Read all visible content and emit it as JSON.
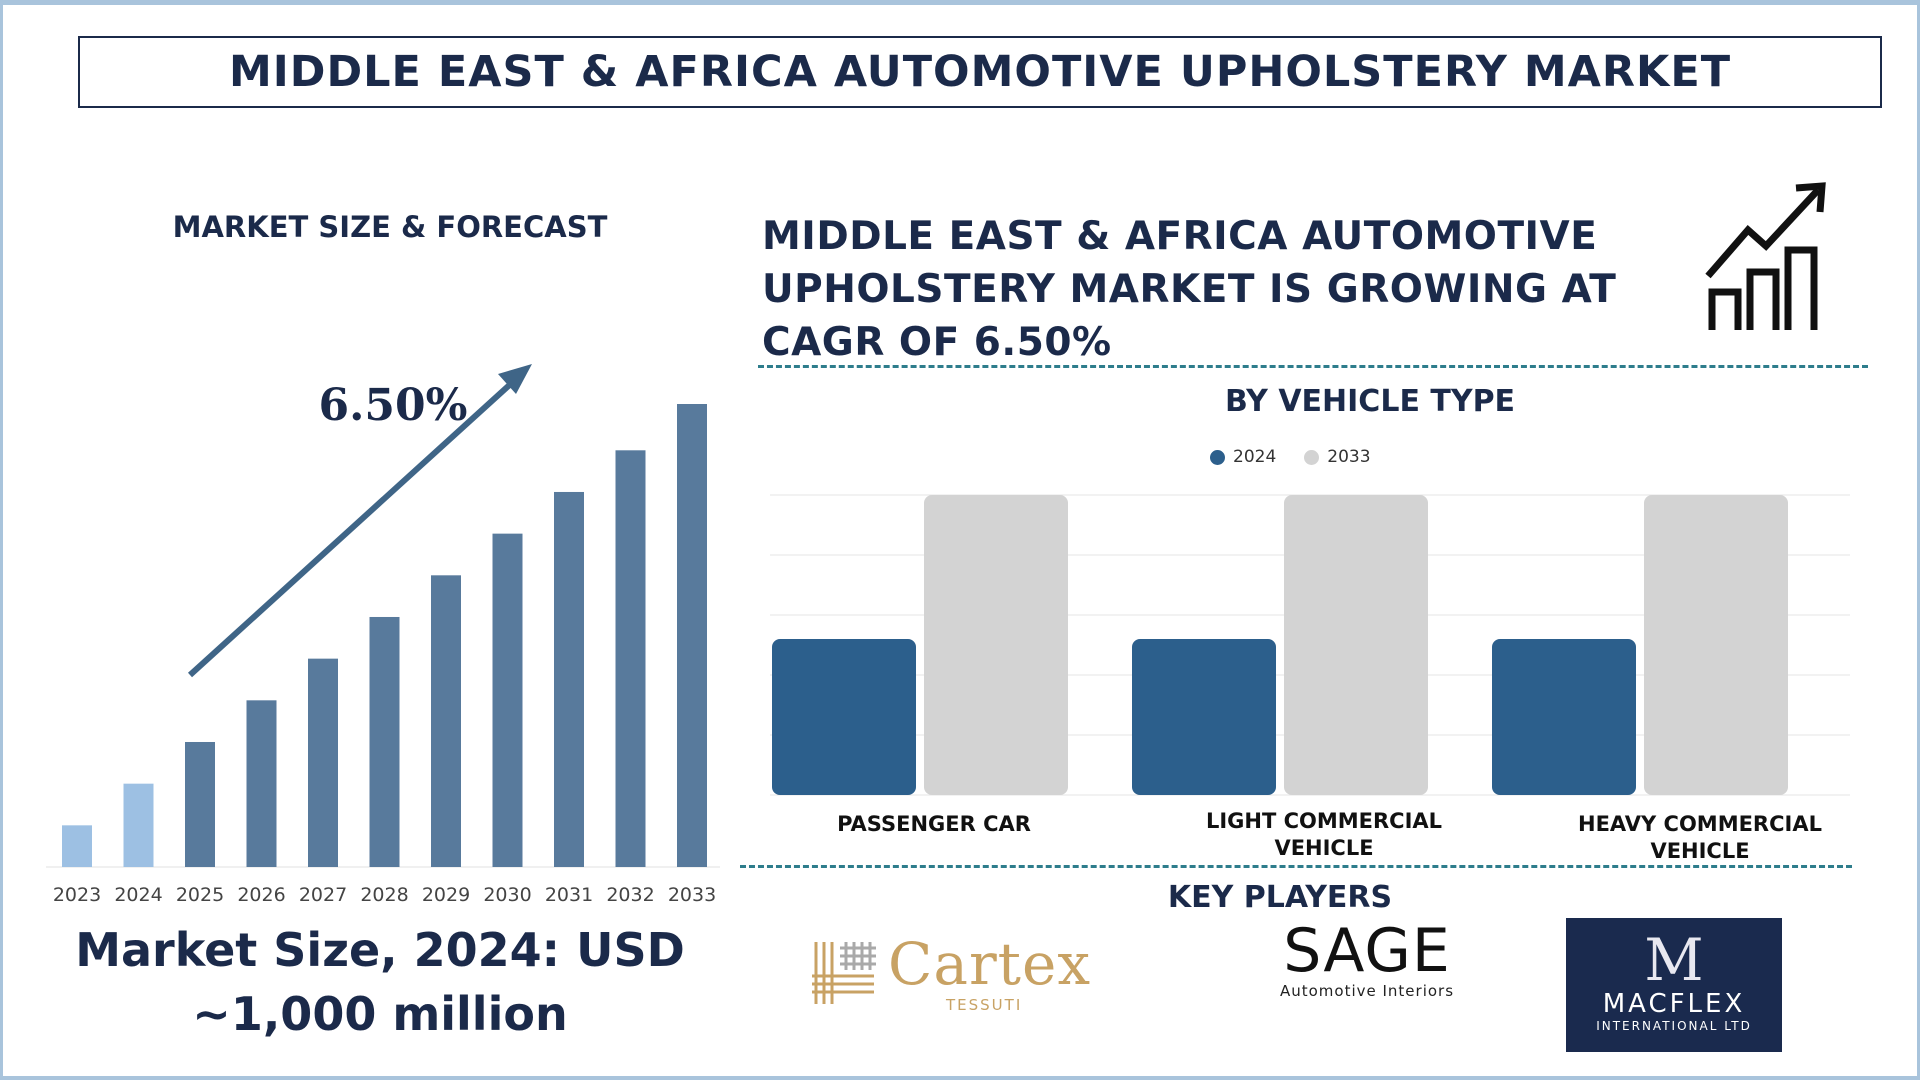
{
  "title": "MIDDLE EAST & AFRICA AUTOMOTIVE UPHOLSTERY MARKET",
  "left_panel": {
    "heading": "MARKET SIZE & FORECAST",
    "cagr_label": "6.50%",
    "market_size_line1": "Market Size, 2024: USD",
    "market_size_line2": "~1,000 million"
  },
  "right_panel": {
    "headline": "MIDDLE EAST & AFRICA AUTOMOTIVE UPHOLSTERY MARKET IS GROWING AT CAGR OF 6.50%",
    "icon": "growth-chart-icon",
    "vehicle_heading": "BY VEHICLE TYPE",
    "key_players_heading": "KEY PLAYERS"
  },
  "key_players": [
    {
      "name": "Cartex",
      "sub": "TESSUTI"
    },
    {
      "name": "SAGE",
      "sub": "Automotive Interiors"
    },
    {
      "name": "MACFLEX",
      "sub": "INTERNATIONAL LTD"
    }
  ],
  "colors": {
    "navy": "#1b2a4a",
    "bar_light": "#9dc0e3",
    "bar_dark": "#587a9c",
    "arrow": "#3f6587",
    "series_2024": "#2c5f8c",
    "series_2033": "#d3d3d3",
    "dashed_line": "#2e7d8c"
  },
  "chart_data": [
    {
      "type": "bar",
      "categories": [
        "2023",
        "2024",
        "2025",
        "2026",
        "2027",
        "2028",
        "2029",
        "2030",
        "2031",
        "2032",
        "2033"
      ],
      "values": [
        9,
        18,
        27,
        36,
        45,
        54,
        63,
        72,
        81,
        90,
        100
      ],
      "annotation": "6.50%",
      "ylim": [
        0,
        100
      ]
    },
    {
      "type": "bar",
      "categories": [
        "PASSENGER CAR",
        "LIGHT COMMERCIAL VEHICLE",
        "HEAVY COMMERCIAL VEHICLE"
      ],
      "series": [
        {
          "name": "2024",
          "values": [
            52,
            52,
            52
          ]
        },
        {
          "name": "2033",
          "values": [
            100,
            100,
            100
          ]
        }
      ],
      "ylim": [
        0,
        100
      ],
      "grid": true,
      "legend": "top-center"
    }
  ]
}
